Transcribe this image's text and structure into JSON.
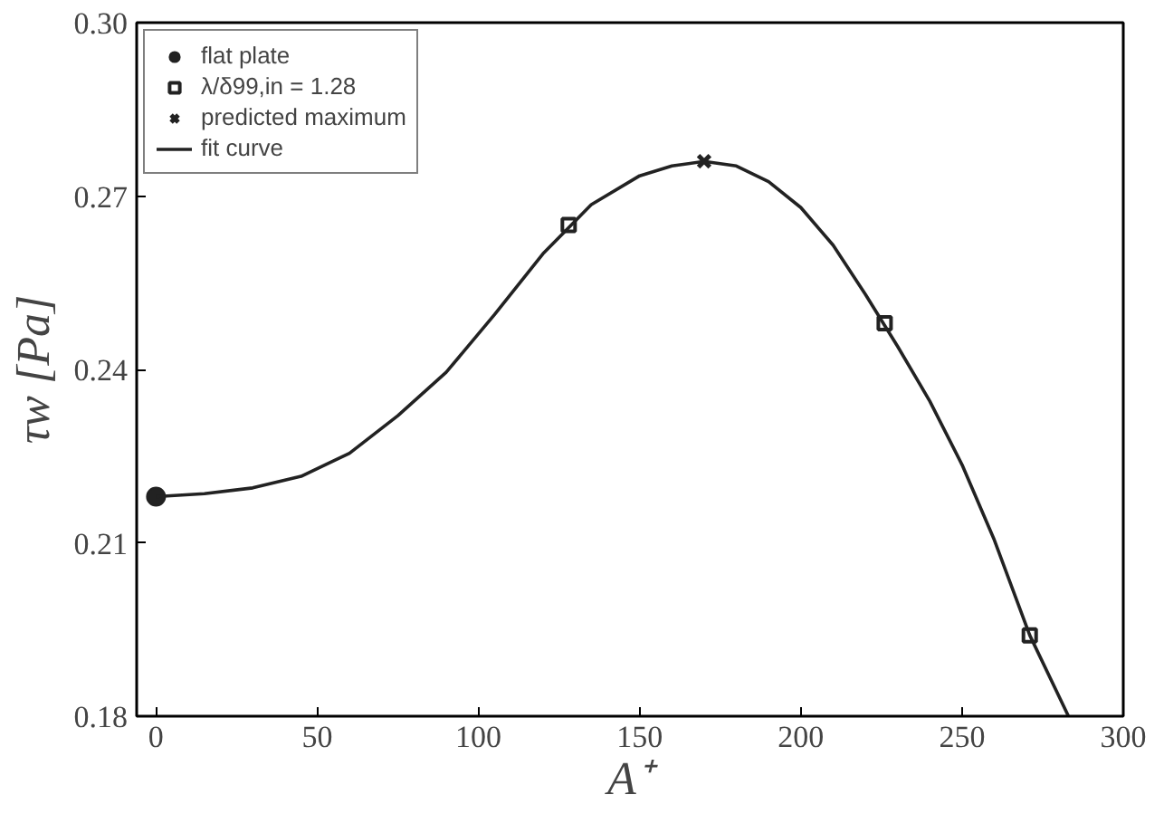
{
  "chart_data": {
    "type": "scatter",
    "xlabel": "A⁺",
    "ylabel": "τw [Pa]",
    "xlim": [
      -6,
      300
    ],
    "xticks": [
      0,
      50,
      100,
      150,
      200,
      250,
      300
    ],
    "ylim": [
      0.18,
      0.3
    ],
    "yticks": [
      {
        "value": 0.18,
        "label": "0.18"
      },
      {
        "value": 0.21,
        "label": "0.21"
      },
      {
        "value": 0.24,
        "label": "0.24"
      },
      {
        "value": 0.27,
        "label": "0.27"
      },
      {
        "value": 0.3,
        "label": "0.30"
      }
    ],
    "grid": false,
    "legend": "top left",
    "series": [
      {
        "name": "flat plate",
        "marker": "circle",
        "color": "#222222",
        "x": [
          0
        ],
        "values": [
          0.218
        ]
      },
      {
        "name": "λ/δ99,in = 1.28",
        "marker": "square",
        "color": "#222222",
        "x": [
          128,
          226,
          271
        ],
        "values": [
          0.265,
          0.248,
          0.194
        ]
      },
      {
        "name": "predicted maximum",
        "marker": "cross",
        "color": "#222222",
        "x": [
          170
        ],
        "values": [
          0.276
        ]
      },
      {
        "name": "fit curve",
        "type": "line",
        "color": "#222222",
        "x": [
          0,
          15,
          30,
          45,
          60,
          75,
          90,
          105,
          120,
          135,
          150,
          160,
          170,
          180,
          190,
          200,
          210,
          220,
          230,
          240,
          250,
          260,
          271,
          283
        ],
        "values": [
          0.218,
          0.2185,
          0.2195,
          0.2215,
          0.2255,
          0.232,
          0.2395,
          0.2495,
          0.26,
          0.2685,
          0.2735,
          0.2752,
          0.276,
          0.2752,
          0.2725,
          0.268,
          0.2615,
          0.253,
          0.244,
          0.2345,
          0.2235,
          0.2105,
          0.194,
          0.18
        ]
      }
    ]
  }
}
